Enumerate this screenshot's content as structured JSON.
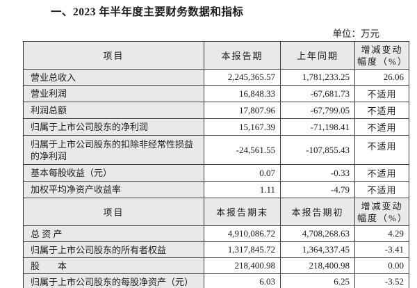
{
  "title": "一、2023 年半年度主要财务数据和指标",
  "unit": "单位：万元",
  "section1": {
    "header": {
      "item": "项目",
      "current": "本报告期",
      "prior": "上年同期",
      "change_line1": "增减变动",
      "change_line2": "幅度（%）"
    },
    "rows": [
      {
        "item": "营业总收入",
        "current": "2,245,365.57",
        "prior": "1,781,233.25",
        "change": "26.06"
      },
      {
        "item": "营业利润",
        "current": "16,848.33",
        "prior": "-67,681.73",
        "change": "不适用"
      },
      {
        "item": "利润总额",
        "current": "17,807.96",
        "prior": "-67,799.05",
        "change": "不适用"
      },
      {
        "item": "归属于上市公司股东的净利润",
        "current": "15,167.39",
        "prior": "-71,198.41",
        "change": "不适用"
      },
      {
        "item": "归属于上市公司股东的扣除非经常性损益的净利润",
        "current": "-24,561.55",
        "prior": "-107,855.43",
        "change": "不适用"
      },
      {
        "item": "基本每股收益（元）",
        "current": "0.07",
        "prior": "-0.33",
        "change": "不适用"
      },
      {
        "item": "加权平均净资产收益率",
        "current": "1.11",
        "prior": "-4.79",
        "change": "不适用"
      }
    ]
  },
  "section2": {
    "header": {
      "item": "项目",
      "current": "本报告期末",
      "prior": "本报告期初",
      "change_line1": "增减变动",
      "change_line2": "幅度（%）"
    },
    "rows": [
      {
        "item": "总 资 产",
        "current": "4,910,086.72",
        "prior": "4,708,268.63",
        "change": "4.29"
      },
      {
        "item": "归属于上市公司股东的所有者权益",
        "current": "1,317,845.72",
        "prior": "1,364,337.45",
        "change": "-3.41"
      },
      {
        "item": "股　　本",
        "current": "218,400.98",
        "prior": "218,400.98",
        "change": "0.00"
      },
      {
        "item": "归属于上市公司股东的每股净资产（元）",
        "current": "6.03",
        "prior": "6.25",
        "change": "-3.52"
      }
    ]
  }
}
